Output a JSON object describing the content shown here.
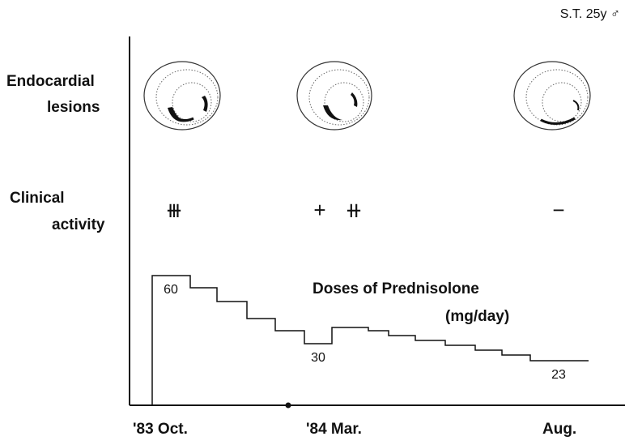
{
  "corner_label": "S.T.  25y ♂",
  "rows": {
    "endocardial": [
      "Endocardial",
      "lesions"
    ],
    "clinical": [
      "Clinical",
      "activity"
    ]
  },
  "activity": [
    "⧻",
    "+",
    "⧺",
    "−"
  ],
  "doses": {
    "title": "Doses of Prednisolone",
    "unit": "(mg/day)",
    "labels": [
      60,
      30,
      23
    ]
  },
  "time_labels": [
    "'83 Oct.",
    "'84 Mar.",
    "Aug."
  ]
}
